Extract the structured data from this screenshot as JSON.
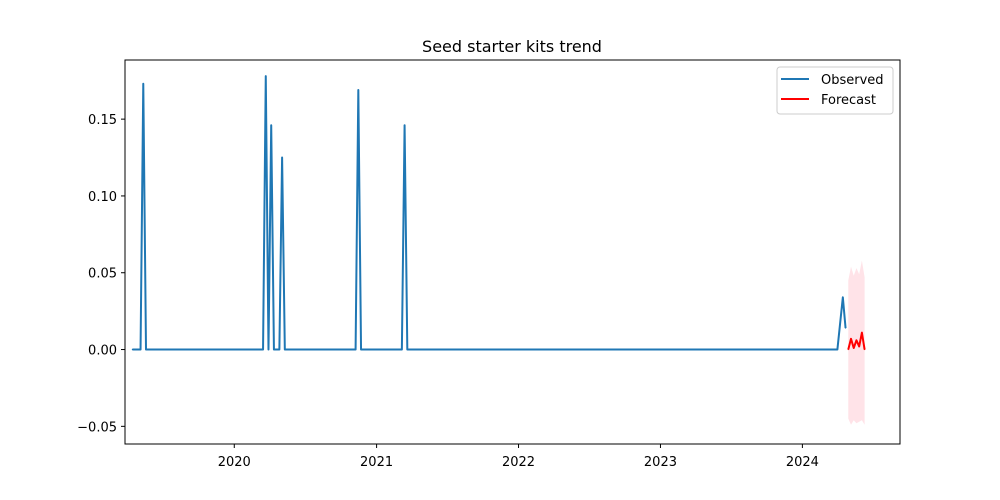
{
  "chart_data": {
    "type": "line",
    "title": "Seed starter kits trend",
    "xlabel": "",
    "ylabel": "",
    "x_tick_labels": [
      "2020",
      "2021",
      "2022",
      "2023",
      "2024"
    ],
    "y_tick_labels": [
      "−0.05",
      "0.00",
      "0.05",
      "0.10",
      "0.15"
    ],
    "y_ticks": [
      -0.05,
      0.0,
      0.05,
      0.1,
      0.15
    ],
    "x_ticks": [
      "2020-01-01",
      "2021-01-01",
      "2022-01-01",
      "2023-01-01",
      "2024-01-01"
    ],
    "xlim": [
      "2019-03-26",
      "2024-09-08"
    ],
    "ylim": [
      -0.0615,
      0.1885
    ],
    "grid": false,
    "legend_position": "top-right",
    "series": [
      {
        "name": "Observed",
        "color": "#1f77b4",
        "points": [
          [
            "2019-04-14",
            0.0
          ],
          [
            "2019-04-28",
            0.0
          ],
          [
            "2019-05-05",
            0.0
          ],
          [
            "2019-05-12",
            0.173
          ],
          [
            "2019-05-19",
            0.0
          ],
          [
            "2020-03-08",
            0.0
          ],
          [
            "2020-03-15",
            0.0
          ],
          [
            "2020-03-22",
            0.178
          ],
          [
            "2020-03-29",
            0.0
          ],
          [
            "2020-04-05",
            0.146
          ],
          [
            "2020-04-12",
            0.0
          ],
          [
            "2020-04-26",
            0.0
          ],
          [
            "2020-05-03",
            0.125
          ],
          [
            "2020-05-10",
            0.0
          ],
          [
            "2020-11-08",
            0.0
          ],
          [
            "2020-11-15",
            0.169
          ],
          [
            "2020-11-22",
            0.0
          ],
          [
            "2021-03-07",
            0.0
          ],
          [
            "2021-03-14",
            0.146
          ],
          [
            "2021-03-21",
            0.0
          ],
          [
            "2024-03-31",
            0.0
          ],
          [
            "2024-04-14",
            0.034
          ],
          [
            "2024-04-21",
            0.014
          ]
        ]
      },
      {
        "name": "Forecast",
        "color": "#ff0000",
        "band_color": "#ffc0cb",
        "points": [
          [
            "2024-04-28",
            0.0
          ],
          [
            "2024-05-05",
            0.007
          ],
          [
            "2024-05-12",
            0.001
          ],
          [
            "2024-05-19",
            0.006
          ],
          [
            "2024-05-26",
            0.002
          ],
          [
            "2024-06-02",
            0.011
          ],
          [
            "2024-06-09",
            0.0
          ]
        ],
        "lower": [
          -0.045,
          -0.049,
          -0.046,
          -0.048,
          -0.047,
          -0.046,
          -0.049
        ],
        "upper": [
          0.045,
          0.054,
          0.048,
          0.053,
          0.049,
          0.058,
          0.047
        ]
      }
    ]
  }
}
